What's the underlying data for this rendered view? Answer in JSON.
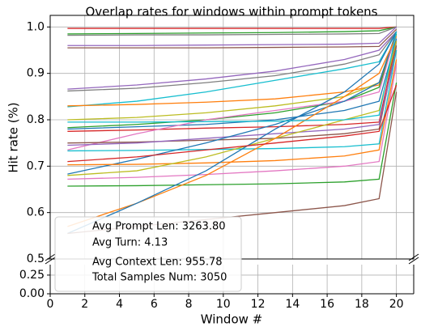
{
  "chart_data": {
    "type": "line",
    "title": "Overlap rates for windows within prompt tokens",
    "x_label": "Window #",
    "y_label": "Hit rate (%)",
    "x": [
      1,
      5,
      9,
      13,
      17,
      19,
      20
    ],
    "xlim": [
      0,
      21
    ],
    "xticks": [
      0,
      2,
      4,
      6,
      8,
      10,
      12,
      14,
      16,
      18,
      20
    ],
    "ylim": [
      0.5,
      1.025
    ],
    "yticks": [
      {
        "value": 0.5,
        "label": "0.5"
      },
      {
        "value": 0.6,
        "label": "0.6"
      },
      {
        "value": 0.7,
        "label": "0.7"
      },
      {
        "value": 0.8,
        "label": "0.8"
      },
      {
        "value": 0.9,
        "label": "0.9"
      },
      {
        "value": 1.0,
        "label": "1.0"
      }
    ],
    "lower_ylim": [
      0,
      0.39
    ],
    "lower_yticks": [
      {
        "value": 0,
        "label": "0.00"
      },
      {
        "value": 0.25,
        "label": "0.25"
      }
    ],
    "grid": true,
    "annotations": [
      "Avg Prompt Len: 3263.80",
      "Avg Turn: 4.13",
      "Avg Context Len: 955.78",
      "Total Samples Num: 3050"
    ],
    "series": [
      {
        "color": "#d62728",
        "values": [
          0.997,
          0.997,
          0.997,
          0.997,
          0.997,
          0.997,
          1.0
        ]
      },
      {
        "color": "#2ca02c",
        "values": [
          0.985,
          0.986,
          0.987,
          0.988,
          0.99,
          0.992,
          1.0
        ]
      },
      {
        "color": "#7f7f7f",
        "values": [
          0.982,
          0.983,
          0.983,
          0.984,
          0.985,
          0.986,
          1.0
        ]
      },
      {
        "color": "#9467bd",
        "values": [
          0.96,
          0.96,
          0.961,
          0.962,
          0.963,
          0.965,
          1.0
        ]
      },
      {
        "color": "#8c564b",
        "values": [
          0.955,
          0.955,
          0.955,
          0.956,
          0.957,
          0.958,
          0.995
        ]
      },
      {
        "color": "#9467bd",
        "values": [
          0.866,
          0.875,
          0.888,
          0.905,
          0.93,
          0.95,
          0.99
        ]
      },
      {
        "color": "#7f7f7f",
        "values": [
          0.862,
          0.868,
          0.88,
          0.895,
          0.92,
          0.94,
          0.99
        ]
      },
      {
        "color": "#17becf",
        "values": [
          0.828,
          0.84,
          0.86,
          0.885,
          0.91,
          0.925,
          0.99
        ]
      },
      {
        "color": "#ff7f0e",
        "values": [
          0.83,
          0.833,
          0.838,
          0.845,
          0.86,
          0.875,
          0.99
        ]
      },
      {
        "color": "#bcbd22",
        "values": [
          0.8,
          0.805,
          0.815,
          0.83,
          0.85,
          0.88,
          0.99
        ]
      },
      {
        "color": "#2ca02c",
        "values": [
          0.783,
          0.79,
          0.8,
          0.815,
          0.84,
          0.87,
          0.985
        ]
      },
      {
        "color": "#1f77b4",
        "values": [
          0.78,
          0.785,
          0.79,
          0.8,
          0.82,
          0.84,
          0.975
        ]
      },
      {
        "color": "#d62728",
        "values": [
          0.775,
          0.778,
          0.782,
          0.785,
          0.79,
          0.795,
          0.97
        ]
      },
      {
        "color": "#e377c2",
        "values": [
          0.735,
          0.77,
          0.8,
          0.82,
          0.84,
          0.86,
          0.99
        ]
      },
      {
        "color": "#8c564b",
        "values": [
          0.75,
          0.752,
          0.756,
          0.76,
          0.77,
          0.78,
          0.96
        ]
      },
      {
        "color": "#9467bd",
        "values": [
          0.745,
          0.75,
          0.76,
          0.77,
          0.78,
          0.79,
          0.95
        ]
      },
      {
        "color": "#17becf",
        "values": [
          0.733,
          0.734,
          0.736,
          0.738,
          0.742,
          0.748,
          0.95
        ]
      },
      {
        "color": "#1f77b4",
        "values": [
          0.683,
          0.715,
          0.75,
          0.79,
          0.84,
          0.88,
          0.99
        ]
      },
      {
        "color": "#ff7f0e",
        "values": [
          0.703,
          0.704,
          0.707,
          0.712,
          0.722,
          0.735,
          0.93
        ]
      },
      {
        "color": "#e377c2",
        "values": [
          0.672,
          0.676,
          0.682,
          0.69,
          0.7,
          0.71,
          0.92
        ]
      },
      {
        "color": "#bcbd22",
        "values": [
          0.68,
          0.69,
          0.72,
          0.76,
          0.8,
          0.82,
          0.97
        ]
      },
      {
        "color": "#2ca02c",
        "values": [
          0.657,
          0.658,
          0.66,
          0.662,
          0.666,
          0.672,
          0.88
        ]
      },
      {
        "color": "#ff7f0e",
        "values": [
          0.57,
          0.62,
          0.68,
          0.76,
          0.85,
          0.9,
          0.98
        ]
      },
      {
        "color": "#1f77b4",
        "values": [
          0.555,
          0.62,
          0.69,
          0.78,
          0.86,
          0.92,
          0.99
        ]
      },
      {
        "color": "#8c564b",
        "values": [
          0.555,
          0.57,
          0.585,
          0.6,
          0.615,
          0.63,
          0.86
        ]
      },
      {
        "color": "#d62728",
        "values": [
          0.71,
          0.72,
          0.735,
          0.75,
          0.765,
          0.775,
          0.875
        ]
      },
      {
        "color": "#17becf",
        "values": [
          0.795,
          0.795,
          0.796,
          0.797,
          0.8,
          0.81,
          0.99
        ]
      }
    ]
  }
}
